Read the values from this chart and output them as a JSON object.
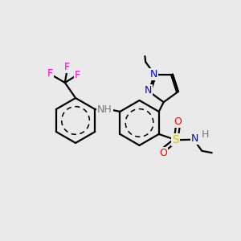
{
  "background_color": "#eaeaea",
  "figsize": [
    3.0,
    3.0
  ],
  "dpi": 100,
  "colors": {
    "N": "#0000dd",
    "O": "#ff0000",
    "S": "#cccc00",
    "F": "#ff00cc",
    "H": "#777777",
    "C": "#000000",
    "bond": "#000000"
  },
  "bond_width": 1.6
}
